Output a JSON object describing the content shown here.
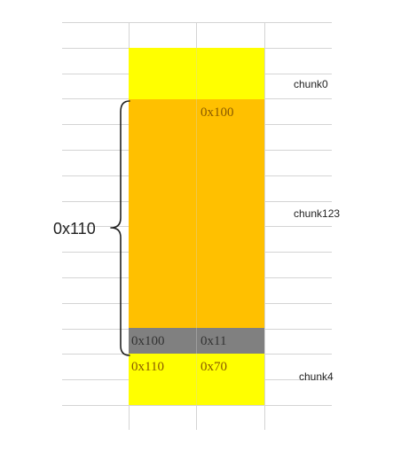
{
  "colors": {
    "chunk_yellow": "#ffff00",
    "chunk_orange": "#ffc000",
    "header_gray": "#808080",
    "text_orange": "#8a5a00",
    "text_dark": "#333333",
    "grid": "#d4d4d4",
    "brace": "#222222"
  },
  "chunks": [
    {
      "name": "chunk0"
    },
    {
      "name": "chunk123"
    },
    {
      "name": "chunk4"
    }
  ],
  "cells": {
    "orange_top": "0x100",
    "gray_prev_size": "0x100",
    "gray_size": "0x11",
    "yellow_prev_size": "0x110",
    "yellow_size": "0x70"
  },
  "brace_label": "0x110"
}
